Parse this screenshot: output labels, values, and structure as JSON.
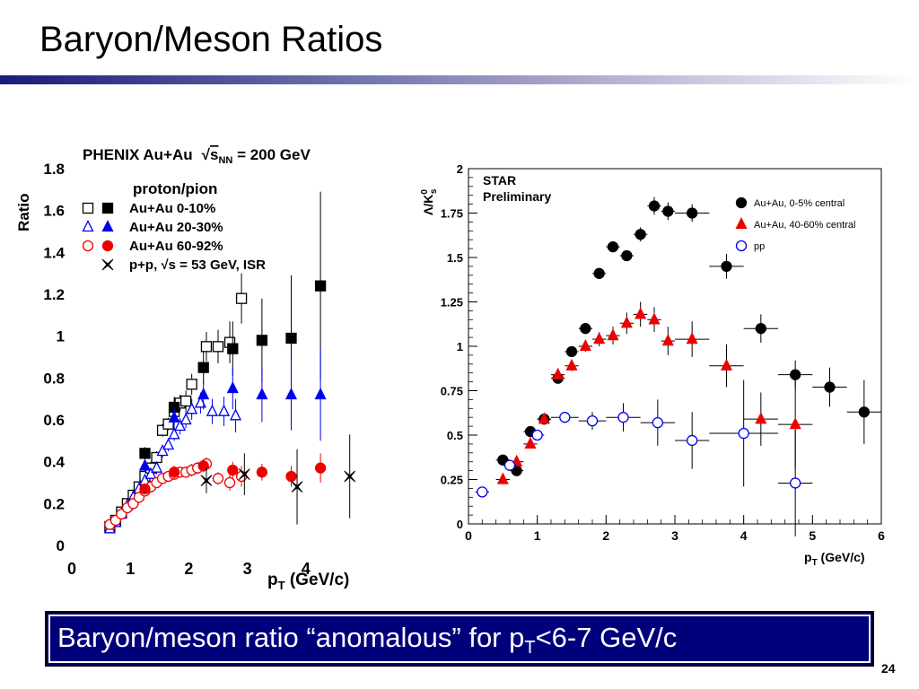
{
  "slide": {
    "title": "Baryon/Meson Ratios",
    "caption_main": "Baryon/meson ratio “anomalous” for p",
    "caption_sub": "T",
    "caption_tail": "<6-7 GeV/c",
    "page_number": "24",
    "caption_bg": "#00007a",
    "rule_colors": [
      "#1a1a7a",
      "#ffffff"
    ]
  },
  "chart_data": [
    {
      "type": "scatter",
      "title": "PHENIX Au+Au √sNN = 200 GeV",
      "title_main": "PHENIX Au+Au",
      "title_sqrt": "s",
      "title_sub": "NN",
      "title_tail": " = 200 GeV",
      "subtitle": "proton/pion",
      "ylabel": "Ratio",
      "xlabel_main": "p",
      "xlabel_sub": "T",
      "xlabel_tail": " (GeV/c)",
      "xlim": [
        0,
        5
      ],
      "ylim": [
        0,
        1.8
      ],
      "xticks": [
        "0",
        "1",
        "2",
        "3",
        "4"
      ],
      "yticks": [
        "0",
        "0.2",
        "0.4",
        "0.6",
        "0.8",
        "1",
        "1.2",
        "1.4",
        "1.6",
        "1.8"
      ],
      "legend_position": "top-left",
      "legend": [
        {
          "label": "Au+Au 0-10%"
        },
        {
          "label": "Au+Au 20-30%"
        },
        {
          "label": "Au+Au 60-92%"
        },
        {
          "label": "p+p, √s = 53 GeV, ISR"
        }
      ],
      "series": [
        {
          "color": "#000000",
          "marker": "square-open",
          "x": [
            0.65,
            0.75,
            0.85,
            0.95,
            1.05,
            1.15,
            1.25,
            1.35,
            1.45,
            1.55,
            1.65,
            1.75,
            1.85,
            1.95,
            2.05,
            2.3,
            2.5,
            2.7,
            2.9
          ],
          "y": [
            0.09,
            0.12,
            0.16,
            0.2,
            0.24,
            0.28,
            0.33,
            0.37,
            0.42,
            0.55,
            0.58,
            0.64,
            0.68,
            0.69,
            0.77,
            0.95,
            0.95,
            0.97,
            1.18
          ],
          "err": [
            0.01,
            0.01,
            0.01,
            0.02,
            0.02,
            0.02,
            0.02,
            0.03,
            0.03,
            0.03,
            0.03,
            0.04,
            0.04,
            0.05,
            0.05,
            0.07,
            0.08,
            0.1,
            0.12
          ]
        },
        {
          "color": "#000000",
          "marker": "square-filled",
          "x": [
            1.25,
            1.75,
            2.25,
            2.75,
            3.25,
            3.75,
            4.25
          ],
          "y": [
            0.44,
            0.66,
            0.85,
            0.94,
            0.98,
            0.99,
            1.24
          ],
          "err": [
            0.03,
            0.05,
            0.08,
            0.13,
            0.2,
            0.3,
            0.45
          ]
        },
        {
          "color": "#0000ee",
          "marker": "triangle-open",
          "x": [
            0.65,
            0.75,
            0.85,
            0.95,
            1.05,
            1.15,
            1.25,
            1.35,
            1.45,
            1.55,
            1.65,
            1.75,
            1.85,
            1.95,
            2.05,
            2.2,
            2.4,
            2.6,
            2.8
          ],
          "y": [
            0.08,
            0.11,
            0.15,
            0.19,
            0.23,
            0.27,
            0.31,
            0.34,
            0.37,
            0.45,
            0.48,
            0.53,
            0.57,
            0.6,
            0.65,
            0.68,
            0.64,
            0.64,
            0.62
          ],
          "err": [
            0.01,
            0.01,
            0.01,
            0.02,
            0.02,
            0.02,
            0.02,
            0.02,
            0.03,
            0.03,
            0.03,
            0.03,
            0.04,
            0.04,
            0.05,
            0.05,
            0.06,
            0.07,
            0.08
          ]
        },
        {
          "color": "#0000ee",
          "marker": "triangle-filled",
          "x": [
            1.25,
            1.75,
            2.25,
            2.75,
            3.25,
            3.75,
            4.25
          ],
          "y": [
            0.38,
            0.61,
            0.72,
            0.75,
            0.72,
            0.72,
            0.72
          ],
          "err": [
            0.03,
            0.05,
            0.07,
            0.1,
            0.13,
            0.17,
            0.22
          ]
        },
        {
          "color": "#ee0000",
          "marker": "circle-open",
          "x": [
            0.65,
            0.75,
            0.85,
            0.95,
            1.05,
            1.15,
            1.25,
            1.35,
            1.45,
            1.55,
            1.65,
            1.75,
            1.85,
            1.95,
            2.05,
            2.15,
            2.3,
            2.5,
            2.7,
            2.9
          ],
          "y": [
            0.1,
            0.12,
            0.15,
            0.18,
            0.2,
            0.23,
            0.26,
            0.28,
            0.3,
            0.32,
            0.33,
            0.34,
            0.35,
            0.35,
            0.36,
            0.37,
            0.39,
            0.32,
            0.3,
            0.33
          ],
          "err": [
            0.01,
            0.01,
            0.01,
            0.01,
            0.01,
            0.01,
            0.02,
            0.02,
            0.02,
            0.02,
            0.02,
            0.02,
            0.02,
            0.02,
            0.03,
            0.03,
            0.03,
            0.03,
            0.04,
            0.05
          ]
        },
        {
          "color": "#ee0000",
          "marker": "circle-filled",
          "x": [
            1.25,
            1.75,
            2.25,
            2.75,
            3.25,
            3.75,
            4.25
          ],
          "y": [
            0.27,
            0.35,
            0.38,
            0.36,
            0.35,
            0.33,
            0.37
          ],
          "err": [
            0.02,
            0.03,
            0.03,
            0.04,
            0.04,
            0.05,
            0.07
          ]
        },
        {
          "color": "#000000",
          "marker": "star",
          "x": [
            2.3,
            2.95,
            3.85,
            4.75
          ],
          "y": [
            0.31,
            0.34,
            0.28,
            0.33
          ],
          "err": [
            0.06,
            0.1,
            0.18,
            0.2
          ]
        }
      ]
    },
    {
      "type": "scatter",
      "title_line1": "STAR",
      "title_line2": "Preliminary",
      "ylabel": "Λ/K⁰s",
      "ylabel_main": "Λ/K",
      "ylabel_sup": "0",
      "ylabel_sub": "s",
      "xlabel_main": "p",
      "xlabel_sub": "T",
      "xlabel_tail": " (GeV/c)",
      "xlim": [
        0,
        6
      ],
      "ylim": [
        0,
        2
      ],
      "xticks": [
        "0",
        "1",
        "2",
        "3",
        "4",
        "5",
        "6"
      ],
      "yticks": [
        "0",
        "0.25",
        "0.5",
        "0.75",
        "1",
        "1.25",
        "1.5",
        "1.75",
        "2"
      ],
      "legend_position": "top-right",
      "legend": [
        {
          "label": "Au+Au, 0-5% central"
        },
        {
          "label": "Au+Au, 40-60% central"
        },
        {
          "label": "pp"
        }
      ],
      "series": [
        {
          "color": "#000000",
          "marker": "circle-filled",
          "x": [
            0.5,
            0.7,
            0.9,
            1.1,
            1.3,
            1.5,
            1.7,
            1.9,
            2.1,
            2.3,
            2.5,
            2.7,
            2.9,
            3.25,
            3.75,
            4.25,
            4.75,
            5.25,
            5.75
          ],
          "y": [
            0.36,
            0.3,
            0.52,
            0.59,
            0.82,
            0.97,
            1.1,
            1.41,
            1.56,
            1.51,
            1.63,
            1.79,
            1.76,
            1.75,
            1.45,
            1.1,
            0.84,
            0.77,
            0.63
          ],
          "xerr": [
            0.1,
            0.1,
            0.1,
            0.1,
            0.1,
            0.1,
            0.1,
            0.1,
            0.1,
            0.1,
            0.1,
            0.1,
            0.1,
            0.25,
            0.25,
            0.25,
            0.25,
            0.25,
            0.25
          ],
          "err": [
            0.01,
            0.01,
            0.01,
            0.01,
            0.02,
            0.02,
            0.02,
            0.02,
            0.03,
            0.03,
            0.04,
            0.05,
            0.05,
            0.05,
            0.07,
            0.08,
            0.08,
            0.11,
            0.18
          ]
        },
        {
          "color": "#ee0000",
          "marker": "triangle-filled",
          "x": [
            0.5,
            0.7,
            0.9,
            1.1,
            1.3,
            1.5,
            1.7,
            1.9,
            2.1,
            2.3,
            2.5,
            2.7,
            2.9,
            3.25,
            3.75,
            4.25,
            4.75
          ],
          "y": [
            0.25,
            0.35,
            0.45,
            0.59,
            0.84,
            0.89,
            1.0,
            1.04,
            1.06,
            1.13,
            1.18,
            1.15,
            1.03,
            1.04,
            0.89,
            0.59,
            0.56
          ],
          "xerr": [
            0.1,
            0.1,
            0.1,
            0.1,
            0.1,
            0.1,
            0.1,
            0.1,
            0.1,
            0.1,
            0.1,
            0.1,
            0.1,
            0.25,
            0.25,
            0.25,
            0.25
          ],
          "err": [
            0.01,
            0.01,
            0.01,
            0.02,
            0.02,
            0.03,
            0.03,
            0.04,
            0.05,
            0.06,
            0.07,
            0.07,
            0.08,
            0.1,
            0.12,
            0.15,
            0.25
          ]
        },
        {
          "color": "#0000ee",
          "marker": "circle-open",
          "x": [
            0.2,
            0.6,
            1.0,
            1.4,
            1.8,
            2.25,
            2.75,
            3.25,
            4.0,
            4.75
          ],
          "y": [
            0.18,
            0.33,
            0.5,
            0.6,
            0.58,
            0.6,
            0.57,
            0.47,
            0.51,
            0.23
          ],
          "xerr": [
            0.1,
            0.1,
            0.1,
            0.2,
            0.2,
            0.25,
            0.25,
            0.25,
            0.5,
            0.25
          ],
          "err": [
            0.03,
            0.03,
            0.03,
            0.03,
            0.05,
            0.08,
            0.13,
            0.16,
            0.3,
            0.3
          ]
        }
      ]
    }
  ]
}
